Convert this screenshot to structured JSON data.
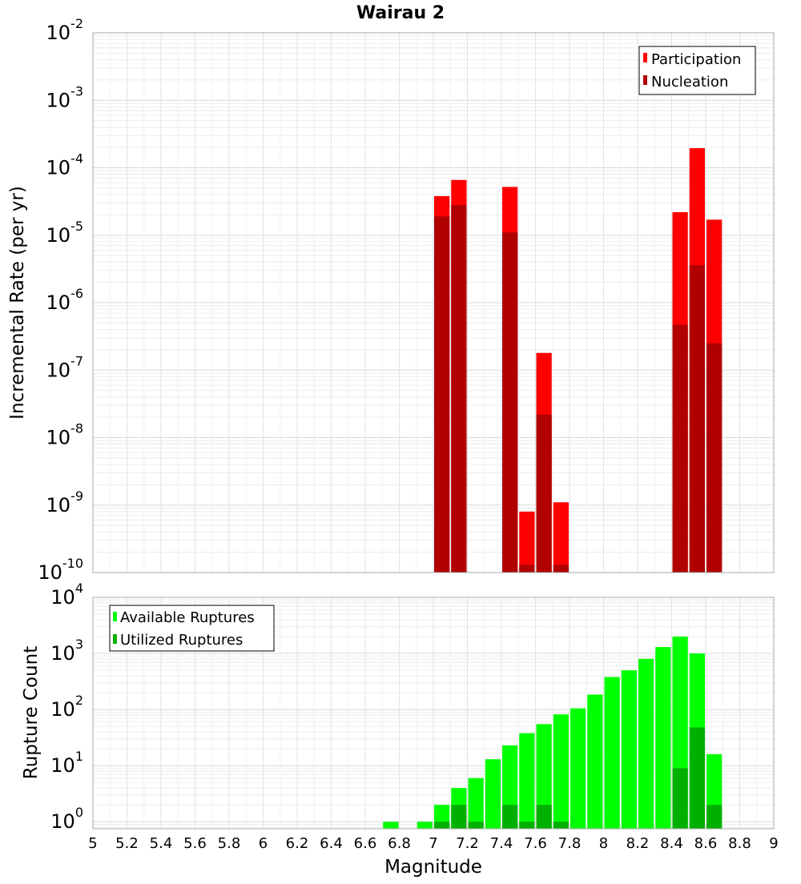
{
  "chart_data": [
    {
      "type": "bar",
      "title": "Wairau 2",
      "ylabel": "Incremental Rate (per yr)",
      "xlabel": "",
      "xlim": [
        5,
        9
      ],
      "ylim": [
        1e-10,
        0.01
      ],
      "yscale": "log",
      "bin_width": 0.1,
      "grid": true,
      "legend_position": "top-right",
      "y_tick_labels": [
        {
          "base": "10",
          "exp": "-2"
        },
        {
          "base": "10",
          "exp": "-3"
        },
        {
          "base": "10",
          "exp": "-4"
        },
        {
          "base": "10",
          "exp": "-5"
        },
        {
          "base": "10",
          "exp": "-6"
        },
        {
          "base": "10",
          "exp": "-7"
        },
        {
          "base": "10",
          "exp": "-8"
        },
        {
          "base": "10",
          "exp": "-9"
        },
        {
          "base": "10",
          "exp": "-10"
        }
      ],
      "y_tick_values": [
        0.01,
        0.001,
        0.0001,
        1e-05,
        1e-06,
        1e-07,
        1e-08,
        1e-09,
        1e-10
      ],
      "series": [
        {
          "name": "Participation",
          "color": "#ff0000",
          "x": [
            7.05,
            7.15,
            7.45,
            7.55,
            7.65,
            7.75,
            8.45,
            8.55,
            8.65
          ],
          "values": [
            3.8e-05,
            6.6e-05,
            5.2e-05,
            8e-10,
            1.8e-07,
            1.1e-09,
            2.2e-05,
            0.000195,
            1.7e-05
          ]
        },
        {
          "name": "Nucleation",
          "color": "#b00000",
          "x": [
            7.05,
            7.15,
            7.45,
            7.55,
            7.65,
            7.75,
            8.45,
            8.55,
            8.65
          ],
          "values": [
            1.9e-05,
            2.8e-05,
            1.1e-05,
            1.3e-10,
            2.2e-08,
            1.3e-10,
            4.7e-07,
            3.6e-06,
            2.5e-07
          ]
        }
      ]
    },
    {
      "type": "bar",
      "title": "",
      "ylabel": "Rupture Count",
      "xlabel": "Magnitude",
      "xlim": [
        5,
        9
      ],
      "ylim": [
        0.75,
        10000.0
      ],
      "yscale": "log",
      "bin_width": 0.1,
      "grid": true,
      "legend_position": "top-left",
      "x_tick_labels": [
        "5",
        "5.2",
        "5.4",
        "5.6",
        "5.8",
        "6",
        "6.2",
        "6.4",
        "6.6",
        "6.8",
        "7",
        "7.2",
        "7.4",
        "7.6",
        "7.8",
        "8",
        "8.2",
        "8.4",
        "8.6",
        "8.8",
        "9"
      ],
      "x_tick_values": [
        5,
        5.2,
        5.4,
        5.6,
        5.8,
        6,
        6.2,
        6.4,
        6.6,
        6.8,
        7,
        7.2,
        7.4,
        7.6,
        7.8,
        8,
        8.2,
        8.4,
        8.6,
        8.8,
        9
      ],
      "y_tick_labels": [
        {
          "base": "10",
          "exp": "4"
        },
        {
          "base": "10",
          "exp": "3"
        },
        {
          "base": "10",
          "exp": "2"
        },
        {
          "base": "10",
          "exp": "1"
        },
        {
          "base": "10",
          "exp": "0"
        }
      ],
      "y_tick_values": [
        10000.0,
        1000.0,
        100.0,
        10.0,
        1
      ],
      "series": [
        {
          "name": "Available Ruptures",
          "color": "#00ff00",
          "x": [
            6.75,
            6.95,
            7.05,
            7.15,
            7.25,
            7.35,
            7.45,
            7.55,
            7.65,
            7.75,
            7.85,
            7.95,
            8.05,
            8.15,
            8.25,
            8.35,
            8.45,
            8.55,
            8.65
          ],
          "values": [
            1,
            1,
            2,
            4,
            6,
            13,
            23,
            38,
            55,
            82,
            105,
            185,
            380,
            500,
            800,
            1300,
            2000,
            1000,
            16
          ]
        },
        {
          "name": "Utilized Ruptures",
          "color": "#00b000",
          "x": [
            7.05,
            7.15,
            7.25,
            7.45,
            7.55,
            7.65,
            7.75,
            8.45,
            8.55,
            8.65
          ],
          "values": [
            1,
            2,
            1,
            2,
            1,
            2,
            1,
            9,
            48,
            2
          ]
        }
      ]
    }
  ]
}
